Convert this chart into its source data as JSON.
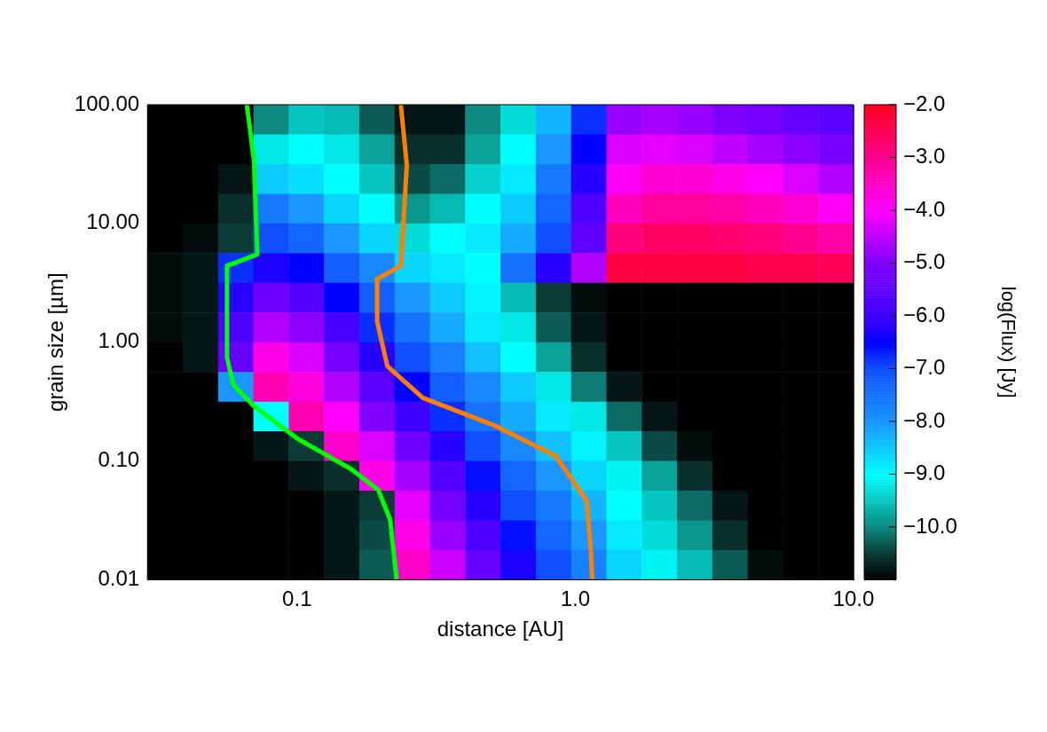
{
  "chart_data": {
    "type": "heatmap",
    "xlabel": "distance [AU]",
    "ylabel": "grain size [µm]",
    "clabel": "log(Flux) [Jy]",
    "log": "xy",
    "grid": false,
    "legend": false,
    "xlim": [
      0.029,
      10
    ],
    "xticks": [
      {
        "value": 0.1,
        "label": "0.1"
      },
      {
        "value": 1,
        "label": "1.0"
      },
      {
        "value": 10,
        "label": "10.0"
      }
    ],
    "ylim": [
      0.01,
      100
    ],
    "yticks": [
      {
        "value": 0.01,
        "label": "0.01"
      },
      {
        "value": 0.1,
        "label": "0.10"
      },
      {
        "value": 1,
        "label": "1.00"
      },
      {
        "value": 10,
        "label": "10.00"
      },
      {
        "value": 100,
        "label": "100.00"
      }
    ],
    "clim": [
      -11,
      -2
    ],
    "cticks": [
      {
        "value": -2,
        "label": "−2.0"
      },
      {
        "value": -3,
        "label": "−3.0"
      },
      {
        "value": -4,
        "label": "−4.0"
      },
      {
        "value": -5,
        "label": "−5.0"
      },
      {
        "value": -6,
        "label": "−6.0"
      },
      {
        "value": -7,
        "label": "−7.0"
      },
      {
        "value": -8,
        "label": "−8.0"
      },
      {
        "value": -9,
        "label": "−9.0"
      },
      {
        "value": -10,
        "label": "−10.0"
      }
    ],
    "cells": [
      [
        -11,
        -11,
        -11,
        -10,
        -9.5,
        -9.6,
        -10.3,
        -10.8,
        -10.8,
        -10,
        -9.3,
        -8.3,
        -6.8,
        -4.8,
        -4.7,
        -4.8,
        -5.0,
        -5.2,
        -5.4,
        -5.6
      ],
      [
        -11,
        -11,
        -11,
        -9.2,
        -9.0,
        -9.2,
        -9.8,
        -10.6,
        -10.6,
        -9.8,
        -9,
        -8,
        -6.5,
        -4.3,
        -4.2,
        -4.3,
        -4.5,
        -4.7,
        -4.9,
        -5.1
      ],
      [
        -11,
        -11,
        -10.8,
        -8.5,
        -8.7,
        -9,
        -9.5,
        -10.4,
        -10.2,
        -9.4,
        -8.8,
        -7.6,
        -6.2,
        -3.9,
        -3.6,
        -3.6,
        -3.8,
        -4.0,
        -4.3,
        -4.6
      ],
      [
        -11,
        -11,
        -10.6,
        -7.6,
        -8,
        -8.6,
        -9,
        -9.9,
        -9.6,
        -9.0,
        -8.5,
        -7.3,
        -5.8,
        -3.4,
        -3.1,
        -3.1,
        -3.2,
        -3.4,
        -3.6,
        -3.9
      ],
      [
        -11,
        -10.9,
        -10.5,
        -7,
        -7.3,
        -8,
        -8.6,
        -9.3,
        -9.0,
        -8.8,
        -8.2,
        -7,
        -5.5,
        -2.8,
        -2.6,
        -2.6,
        -2.7,
        -2.8,
        -3.0,
        -3.2
      ],
      [
        -10.9,
        -10.8,
        -6.8,
        -6.3,
        -6.5,
        -7.2,
        -7.8,
        -8.6,
        -8.8,
        -9,
        -7.5,
        -6.2,
        -4.6,
        -2.3,
        -2.3,
        -2.3,
        -2.3,
        -2.4,
        -2.4,
        -2.5
      ],
      [
        -10.9,
        -10.8,
        -6.2,
        -5.3,
        -5.7,
        -6.5,
        -7.2,
        -8.0,
        -8.5,
        -8.9,
        -9.6,
        -10.5,
        -10.9,
        -11,
        -11,
        -11,
        -11,
        -11,
        -11,
        -11
      ],
      [
        -10.9,
        -10.8,
        -5.8,
        -4.6,
        -4.9,
        -5.9,
        -6.8,
        -7.5,
        -8.2,
        -8.8,
        -9.2,
        -10.3,
        -10.8,
        -11,
        -11,
        -11,
        -11,
        -11,
        -11,
        -11
      ],
      [
        -11,
        -10.8,
        -5.4,
        -3.8,
        -4.3,
        -5.2,
        -6.2,
        -7.0,
        -7.7,
        -8.4,
        -9.0,
        -9.8,
        -10.6,
        -11,
        -11,
        -11,
        -11,
        -11,
        -11,
        -11
      ],
      [
        -11,
        -11,
        -8,
        -3.3,
        -3.7,
        -4.6,
        -5.6,
        -6.5,
        -7.2,
        -7.8,
        -8.5,
        -9.2,
        -10.1,
        -10.8,
        -11,
        -11,
        -11,
        -11,
        -11,
        -11
      ],
      [
        -11,
        -11,
        -11,
        -9,
        -3.3,
        -4.0,
        -5.0,
        -6.0,
        -6.8,
        -7.5,
        -8.2,
        -8.8,
        -9.2,
        -10.2,
        -10.8,
        -11,
        -11,
        -11,
        -11,
        -11
      ],
      [
        -11,
        -11,
        -11,
        -10.8,
        -10.5,
        -3.5,
        -4.3,
        -5.3,
        -6.2,
        -7.0,
        -7.8,
        -8.4,
        -8.9,
        -9.5,
        -10.4,
        -10.9,
        -11,
        -11,
        -11,
        -11
      ],
      [
        -11,
        -11,
        -11,
        -11,
        -10.8,
        -10.6,
        -3.8,
        -4.7,
        -5.7,
        -6.6,
        -7.3,
        -8.0,
        -8.6,
        -9.1,
        -9.8,
        -10.6,
        -11,
        -11,
        -11,
        -11
      ],
      [
        -11,
        -11,
        -11,
        -11,
        -11,
        -10.8,
        -10.5,
        -4.2,
        -5.2,
        -6.2,
        -7.0,
        -7.6,
        -8.3,
        -9.0,
        -9.5,
        -10.2,
        -10.8,
        -11,
        -11,
        -11
      ],
      [
        -11,
        -11,
        -11,
        -11,
        -11,
        -10.8,
        -10.4,
        -3.8,
        -4.8,
        -5.8,
        -6.6,
        -7.3,
        -8.0,
        -8.8,
        -9.3,
        -9.9,
        -10.6,
        -11,
        -11,
        -11
      ],
      [
        -11,
        -11,
        -11,
        -11,
        -11,
        -10.8,
        -10.3,
        -3.5,
        -4.4,
        -5.4,
        -6.3,
        -7.0,
        -7.7,
        -8.6,
        -9.1,
        -9.6,
        -10.3,
        -10.9,
        -11,
        -11
      ]
    ],
    "series": [
      {
        "type": "line",
        "color": "#00ff00",
        "x": [
          0.066,
          0.07,
          0.072,
          0.056,
          0.056,
          0.059,
          0.07,
          0.1,
          0.157,
          0.196,
          0.216,
          0.228
        ],
        "values": [
          100,
          34,
          5.5,
          4.4,
          0.74,
          0.44,
          0.29,
          0.155,
          0.085,
          0.057,
          0.032,
          0.01
        ]
      },
      {
        "type": "line",
        "color": "#ff8000",
        "x": [
          0.236,
          0.248,
          0.236,
          0.194,
          0.194,
          0.211,
          0.283,
          0.51,
          0.85,
          1.1,
          1.14,
          1.15
        ],
        "values": [
          100,
          31,
          4.4,
          3.4,
          1.5,
          0.63,
          0.34,
          0.2,
          0.11,
          0.046,
          0.016,
          0.01
        ]
      }
    ]
  }
}
